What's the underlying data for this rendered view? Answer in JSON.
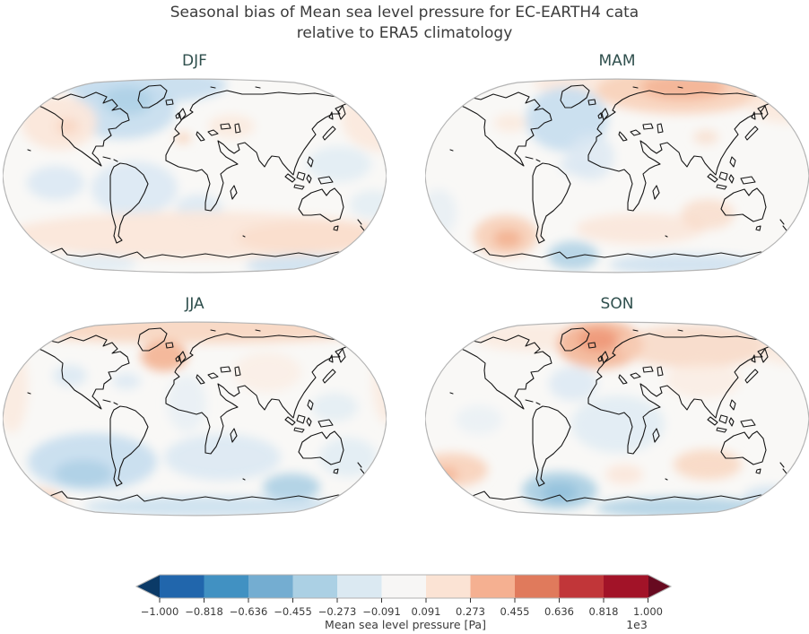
{
  "figure_title": {
    "line1": "Seasonal bias of Mean sea level pressure for EC-EARTH4 cata",
    "line2": "relative to ERA5 climatology"
  },
  "colors": {
    "title_text": "#3b3b3b",
    "panel_title_text": "#2f4f4d",
    "coastline": "#161616",
    "map_outline": "#b5b5b5",
    "map_base": "#f9f8f6",
    "tick_text": "#3a3a3a"
  },
  "chart_data": {
    "type": "heatmap",
    "projection": "Robinson",
    "title": "Seasonal bias of Mean sea level pressure for EC-EARTH4 cata relative to ERA5 climatology",
    "variable": "Mean sea level pressure bias",
    "units": "Pa",
    "scale_factor": "1e3",
    "value_range": [
      -1.0,
      1.0
    ],
    "palette": {
      "b1": "#dce9f3",
      "b2": "#c3dcee",
      "b3": "#a3cbe2",
      "b4": "#86b9d7",
      "o1": "#fbe7da",
      "o2": "#f8d2ba",
      "o3": "#f3ae8c",
      "o4": "#ec8a68",
      "base": "#f9f8f6"
    },
    "panels": [
      {
        "label": "DJF",
        "summary": "Weak negative bias over Arctic, N America and tropical S America; weak positive band over Southern Ocean and NE Pacific.",
        "blobs": [
          [
            160,
            8,
            90,
            20,
            "b2",
            0.85
          ],
          [
            133,
            36,
            60,
            32,
            "b2",
            0.85
          ],
          [
            139,
            26,
            28,
            16,
            "b3",
            0.6
          ],
          [
            63,
            50,
            42,
            30,
            "o1",
            0.95
          ],
          [
            72,
            54,
            13,
            9,
            "o2",
            0.7
          ],
          [
            424,
            46,
            46,
            36,
            "o1",
            0.8
          ],
          [
            255,
            54,
            26,
            13,
            "o1",
            0.75
          ],
          [
            201,
            67,
            9,
            6,
            "o2",
            0.85
          ],
          [
            59,
            117,
            32,
            19,
            "b1",
            0.95
          ],
          [
            147,
            123,
            48,
            30,
            "b1",
            0.95
          ],
          [
            219,
            145,
            26,
            15,
            "b1",
            0.9
          ],
          [
            375,
            96,
            36,
            20,
            "b1",
            0.7
          ],
          [
            413,
            141,
            26,
            16,
            "b1",
            0.65
          ],
          [
            220,
            175,
            215,
            26,
            "o1",
            0.95
          ],
          [
            345,
            178,
            85,
            18,
            "o2",
            0.4
          ],
          [
            333,
            209,
            62,
            12,
            "b2",
            0.7
          ],
          [
            107,
            207,
            42,
            10,
            "b1",
            0.75
          ]
        ]
      },
      {
        "label": "MAM",
        "summary": "Strong positive bias over Arctic Russia; negative over Greenland/N Atlantic; positive blob in S Pacific; negative near Antarctica.",
        "blobs": [
          [
            190,
            6,
            70,
            14,
            "o1",
            0.85
          ],
          [
            285,
            14,
            95,
            26,
            "o2",
            0.9
          ],
          [
            288,
            10,
            48,
            14,
            "o3",
            0.75
          ],
          [
            402,
            28,
            42,
            22,
            "o1",
            0.8
          ],
          [
            158,
            46,
            46,
            36,
            "b2",
            0.85
          ],
          [
            185,
            88,
            26,
            26,
            "b1",
            0.8
          ],
          [
            170,
            97,
            20,
            12,
            "b1",
            0.8
          ],
          [
            95,
            50,
            18,
            10,
            "o1",
            0.75
          ],
          [
            15,
            150,
            20,
            26,
            "b1",
            0.55
          ],
          [
            90,
            176,
            36,
            23,
            "o2",
            0.95
          ],
          [
            92,
            179,
            16,
            10,
            "o3",
            0.8
          ],
          [
            240,
            168,
            72,
            17,
            "o1",
            0.9
          ],
          [
            315,
            152,
            30,
            17,
            "o2",
            0.6
          ],
          [
            165,
            198,
            28,
            16,
            "b3",
            0.75
          ],
          [
            290,
            208,
            85,
            12,
            "b2",
            0.7
          ],
          [
            313,
            66,
            14,
            8,
            "o2",
            0.55
          ]
        ]
      },
      {
        "label": "JJA",
        "summary": "Positive band across Arctic with maximum near Greenland/Iceland; broad weak negative over southern oceans and Antarctica.",
        "blobs": [
          [
            214,
            8,
            215,
            17,
            "o2",
            0.8
          ],
          [
            180,
            39,
            26,
            17,
            "o3",
            0.85
          ],
          [
            10,
            75,
            18,
            50,
            "o1",
            0.7
          ],
          [
            428,
            66,
            16,
            48,
            "o1",
            0.7
          ],
          [
            75,
            61,
            19,
            12,
            "b1",
            0.9
          ],
          [
            138,
            67,
            16,
            9,
            "b1",
            0.85
          ],
          [
            205,
            92,
            22,
            32,
            "b1",
            0.5
          ],
          [
            370,
            96,
            26,
            16,
            "b1",
            0.65
          ],
          [
            100,
            157,
            72,
            32,
            "b2",
            0.85
          ],
          [
            90,
            170,
            32,
            15,
            "b3",
            0.65
          ],
          [
            245,
            152,
            65,
            26,
            "b1",
            0.9
          ],
          [
            322,
            185,
            32,
            15,
            "b3",
            0.8
          ],
          [
            385,
            152,
            32,
            22,
            "b1",
            0.7
          ],
          [
            235,
            207,
            145,
            12,
            "b2",
            0.75
          ],
          [
            40,
            202,
            30,
            15,
            "o2",
            0.8
          ],
          [
            420,
            202,
            27,
            13,
            "o2",
            0.75
          ],
          [
            295,
            57,
            38,
            22,
            "o1",
            0.5
          ]
        ]
      },
      {
        "label": "SON",
        "summary": "Strong positive bias over Scandinavia/Barents and Siberia; negative over S Atlantic storm track, Drake Passage and Antarctic coast.",
        "blobs": [
          [
            120,
            18,
            65,
            16,
            "o1",
            0.7
          ],
          [
            195,
            26,
            48,
            27,
            "o3",
            0.8
          ],
          [
            193,
            21,
            22,
            13,
            "o4",
            0.65
          ],
          [
            300,
            28,
            85,
            24,
            "o2",
            0.7
          ],
          [
            405,
            32,
            32,
            17,
            "o1",
            0.7
          ],
          [
            310,
            66,
            42,
            20,
            "o1",
            0.6
          ],
          [
            165,
            70,
            27,
            19,
            "b1",
            0.85
          ],
          [
            215,
            115,
            52,
            32,
            "b1",
            0.75
          ],
          [
            60,
            110,
            26,
            16,
            "b1",
            0.45
          ],
          [
            30,
            166,
            40,
            19,
            "o2",
            0.9
          ],
          [
            23,
            171,
            14,
            8,
            "o3",
            0.7
          ],
          [
            222,
            171,
            21,
            11,
            "o1",
            0.9
          ],
          [
            315,
            160,
            38,
            17,
            "o2",
            0.75
          ],
          [
            150,
            189,
            42,
            21,
            "b3",
            0.85
          ],
          [
            150,
            191,
            20,
            11,
            "b4",
            0.6
          ],
          [
            285,
            208,
            95,
            12,
            "b3",
            0.75
          ],
          [
            385,
            196,
            30,
            12,
            "b2",
            0.65
          ]
        ]
      }
    ],
    "colorbar": {
      "label": "Mean sea level pressure [Pa]",
      "offset_text": "1e3",
      "tick_labels": [
        "−1.000",
        "−0.818",
        "−0.636",
        "−0.455",
        "−0.273",
        "−0.091",
        "0.091",
        "0.273",
        "0.455",
        "0.636",
        "0.818",
        "1.000"
      ],
      "tick_values": [
        -1.0,
        -0.818,
        -0.636,
        -0.455,
        -0.273,
        -0.091,
        0.091,
        0.273,
        0.455,
        0.636,
        0.818,
        1.0
      ],
      "segment_colors": [
        "#2166ac",
        "#4191c2",
        "#74add1",
        "#abd0e4",
        "#dbe9f2",
        "#f7f6f5",
        "#fbe3d4",
        "#f5b091",
        "#e07a5c",
        "#c13639",
        "#a21328"
      ],
      "under_color": "#0b3a67",
      "over_color": "#670a20",
      "outline_color": "#b0b0b0",
      "tick_color": "#3a3a3a"
    }
  }
}
